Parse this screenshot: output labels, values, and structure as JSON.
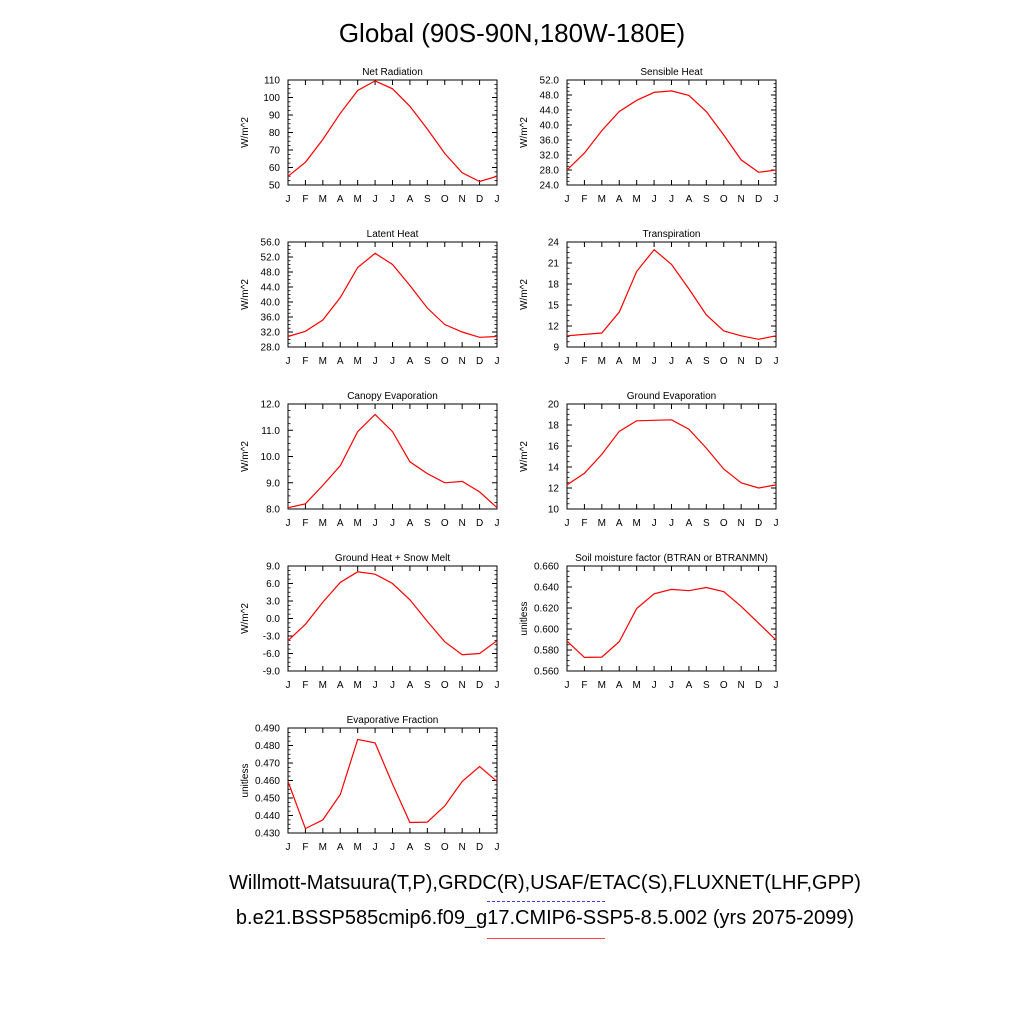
{
  "title": "Global (90S-90N,180W-180E)",
  "footer": {
    "observations": "Willmott-Matsuura(T,P),GRDC(R),USAF/ETAC(S),FLUXNET(LHF,GPP)",
    "case": "b.e21.BSSP585cmip6.f09_g17.CMIP6-SSP5-8.5.002 (yrs 2075-2099)"
  },
  "colors": {
    "series": "#ff0000",
    "observations_legend": "#3b3bff",
    "case_legend": "#ff4040",
    "axes": "#000000"
  },
  "chart_data": [
    {
      "type": "line",
      "title": "Net Radiation",
      "ylabel": "W/m^2",
      "x": [
        "J",
        "F",
        "M",
        "A",
        "M",
        "J",
        "J",
        "A",
        "S",
        "O",
        "N",
        "D",
        "J"
      ],
      "yticks": [
        "50",
        "60",
        "70",
        "80",
        "90",
        "100",
        "110"
      ],
      "ylim": [
        50,
        110
      ],
      "series": [
        {
          "values": [
            55,
            63,
            76,
            91,
            104,
            109.5,
            105,
            95,
            82,
            68,
            57,
            52,
            55
          ]
        }
      ]
    },
    {
      "type": "line",
      "title": "Sensible Heat",
      "ylabel": "W/m^2",
      "x": [
        "J",
        "F",
        "M",
        "A",
        "M",
        "J",
        "J",
        "A",
        "S",
        "O",
        "N",
        "D",
        "J"
      ],
      "yticks": [
        "24.0",
        "28.0",
        "32.0",
        "36.0",
        "40.0",
        "44.0",
        "48.0",
        "52.0"
      ],
      "ylim": [
        24,
        52
      ],
      "series": [
        {
          "values": [
            28,
            32.5,
            38.5,
            43.6,
            46.6,
            48.7,
            49.1,
            47.9,
            43.6,
            37.3,
            30.7,
            27.4,
            28
          ]
        }
      ]
    },
    {
      "type": "line",
      "title": "Latent Heat",
      "ylabel": "W/m^2",
      "x": [
        "J",
        "F",
        "M",
        "A",
        "M",
        "J",
        "J",
        "A",
        "S",
        "O",
        "N",
        "D",
        "J"
      ],
      "yticks": [
        "28.0",
        "32.0",
        "36.0",
        "40.0",
        "44.0",
        "48.0",
        "52.0",
        "56.0"
      ],
      "ylim": [
        28,
        56
      ],
      "series": [
        {
          "values": [
            30.8,
            32.2,
            35.2,
            41.2,
            49.2,
            53.0,
            50.0,
            44.4,
            38.4,
            34.0,
            32.0,
            30.6,
            30.8
          ]
        }
      ]
    },
    {
      "type": "line",
      "title": "Transpiration",
      "ylabel": "W/m^2",
      "x": [
        "J",
        "F",
        "M",
        "A",
        "M",
        "J",
        "J",
        "A",
        "S",
        "O",
        "N",
        "D",
        "J"
      ],
      "yticks": [
        "9",
        "12",
        "15",
        "18",
        "21",
        "24"
      ],
      "ylim": [
        9,
        24
      ],
      "series": [
        {
          "values": [
            10.6,
            10.8,
            11.0,
            14.0,
            19.8,
            22.9,
            20.8,
            17.3,
            13.6,
            11.3,
            10.6,
            10.1,
            10.6
          ]
        }
      ]
    },
    {
      "type": "line",
      "title": "Canopy Evaporation",
      "ylabel": "W/m^2",
      "x": [
        "J",
        "F",
        "M",
        "A",
        "M",
        "J",
        "J",
        "A",
        "S",
        "O",
        "N",
        "D",
        "J"
      ],
      "yticks": [
        "8.0",
        "9.0",
        "10.0",
        "11.0",
        "12.0"
      ],
      "ylim": [
        8,
        12
      ],
      "series": [
        {
          "values": [
            8.05,
            8.2,
            8.9,
            9.65,
            10.95,
            11.6,
            10.95,
            9.8,
            9.35,
            9.0,
            9.05,
            8.65,
            8.05
          ]
        }
      ]
    },
    {
      "type": "line",
      "title": "Ground Evaporation",
      "ylabel": "W/m^2",
      "x": [
        "J",
        "F",
        "M",
        "A",
        "M",
        "J",
        "J",
        "A",
        "S",
        "O",
        "N",
        "D",
        "J"
      ],
      "yticks": [
        "10",
        "12",
        "14",
        "16",
        "18",
        "20"
      ],
      "ylim": [
        10,
        20
      ],
      "series": [
        {
          "values": [
            12.3,
            13.4,
            15.2,
            17.4,
            18.4,
            18.45,
            18.5,
            17.6,
            15.8,
            13.8,
            12.5,
            12.0,
            12.3
          ]
        }
      ]
    },
    {
      "type": "line",
      "title": "Ground Heat + Snow Melt",
      "ylabel": "W/m^2",
      "x": [
        "J",
        "F",
        "M",
        "A",
        "M",
        "J",
        "J",
        "A",
        "S",
        "O",
        "N",
        "D",
        "J"
      ],
      "yticks": [
        "-9.0",
        "-6.0",
        "-3.0",
        "0.0",
        "3.0",
        "6.0",
        "9.0"
      ],
      "ylim": [
        -9,
        9
      ],
      "series": [
        {
          "values": [
            -3.8,
            -1.0,
            2.8,
            6.2,
            8.0,
            7.6,
            6.0,
            3.2,
            -0.5,
            -4.0,
            -6.2,
            -6.0,
            -3.8
          ]
        }
      ]
    },
    {
      "type": "line",
      "title": "Soil moisture factor (BTRAN or BTRANMN)",
      "ylabel": "unitless",
      "x": [
        "J",
        "F",
        "M",
        "A",
        "M",
        "J",
        "J",
        "A",
        "S",
        "O",
        "N",
        "D",
        "J"
      ],
      "yticks": [
        "0.560",
        "0.580",
        "0.600",
        "0.620",
        "0.640",
        "0.660"
      ],
      "ylim": [
        0.56,
        0.66
      ],
      "series": [
        {
          "values": [
            0.5885,
            0.573,
            0.5732,
            0.588,
            0.6195,
            0.6335,
            0.6377,
            0.6365,
            0.6395,
            0.6355,
            0.6215,
            0.6055,
            0.5895
          ]
        }
      ]
    },
    {
      "type": "line",
      "title": "Evaporative Fraction",
      "ylabel": "unitless",
      "x": [
        "J",
        "F",
        "M",
        "A",
        "M",
        "J",
        "J",
        "A",
        "S",
        "O",
        "N",
        "D",
        "J"
      ],
      "yticks": [
        "0.430",
        "0.440",
        "0.450",
        "0.460",
        "0.470",
        "0.480",
        "0.490"
      ],
      "ylim": [
        0.43,
        0.49
      ],
      "series": [
        {
          "values": [
            0.4595,
            0.4325,
            0.4375,
            0.452,
            0.4835,
            0.4815,
            0.458,
            0.436,
            0.4362,
            0.4455,
            0.4595,
            0.468,
            0.4595
          ]
        }
      ]
    }
  ]
}
